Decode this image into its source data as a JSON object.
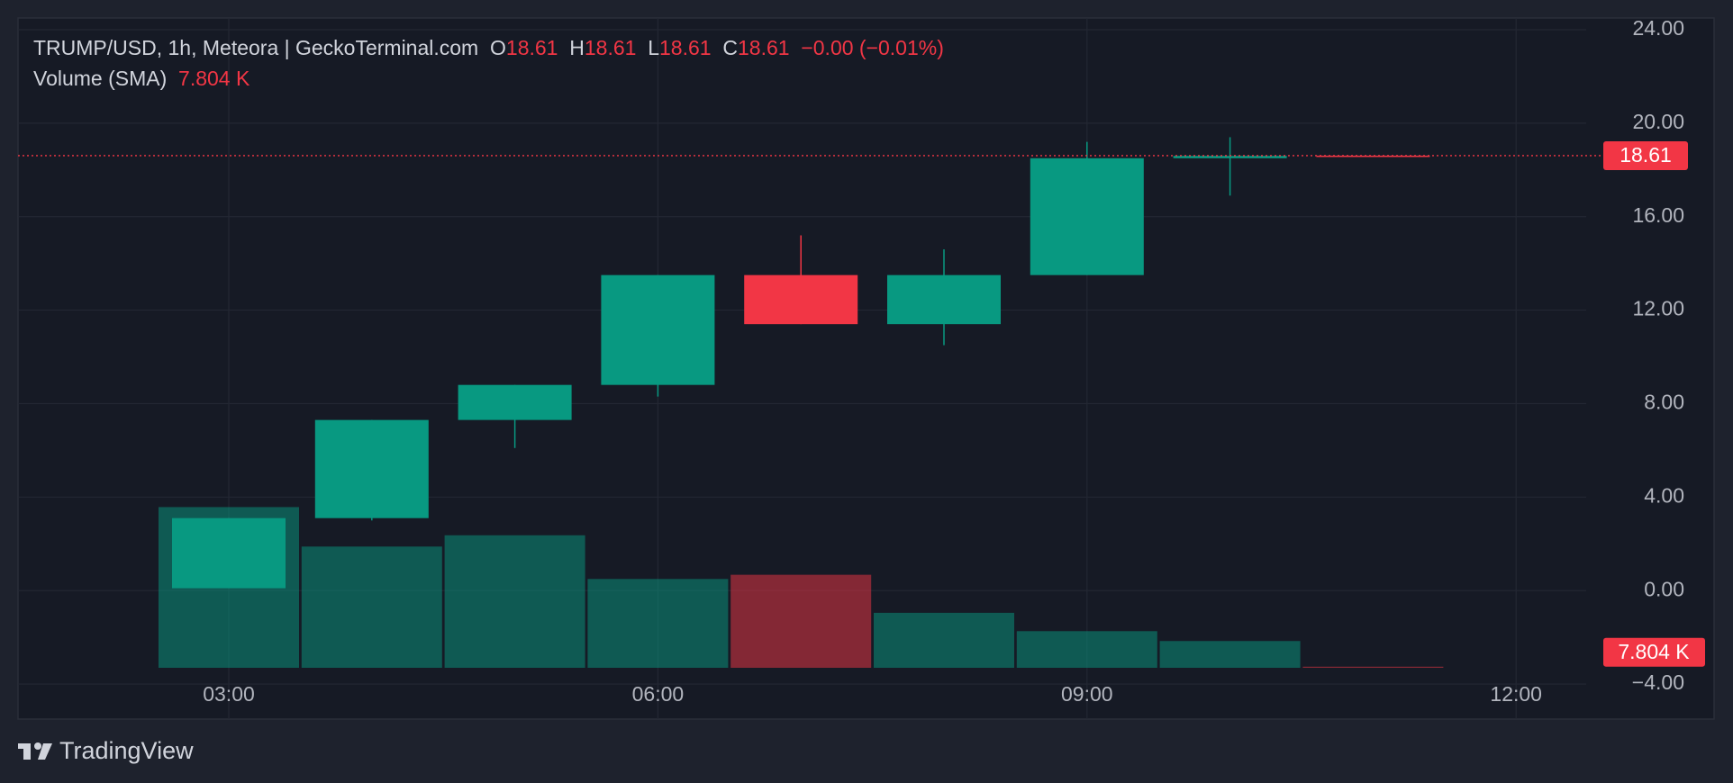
{
  "chart_data": {
    "type": "candlestick",
    "title": "TRUMP/USD, 1h, Meteora | GeckoTerminal.com",
    "ohlc_labels": [
      "O",
      "H",
      "L",
      "C"
    ],
    "change_label": "−0.00 (−0.01%)",
    "categories": [
      "03:00",
      null,
      null,
      "06:00",
      null,
      null,
      "09:00",
      null,
      null,
      "12:00"
    ],
    "open": [
      0.1,
      3.1,
      7.3,
      8.8,
      13.5,
      11.4,
      13.5,
      18.5,
      18.61,
      null
    ],
    "high": [
      3.1,
      7.3,
      8.8,
      13.5,
      15.2,
      14.6,
      19.2,
      19.4,
      18.61,
      null
    ],
    "low": [
      0.1,
      3.0,
      6.1,
      8.3,
      11.4,
      10.5,
      13.5,
      16.9,
      18.61,
      null
    ],
    "close": [
      3.1,
      7.3,
      8.8,
      13.5,
      11.4,
      13.5,
      18.5,
      18.6,
      18.61,
      null
    ],
    "up_color": "#089981",
    "down_color": "#f23645",
    "ylim": [
      -5.5,
      24.5
    ],
    "yticks": [
      {
        "value": 24,
        "label": "24.00"
      },
      {
        "value": 20,
        "label": "20.00"
      },
      {
        "value": 16,
        "label": "16.00"
      },
      {
        "value": 12,
        "label": "12.00"
      },
      {
        "value": 8,
        "label": "8.00"
      },
      {
        "value": 4,
        "label": "4.00"
      },
      {
        "value": 0,
        "label": "0.00"
      },
      {
        "value": -4,
        "label": "−4.00"
      }
    ],
    "grid": true,
    "volume": {
      "name": "Volume (SMA)",
      "values": [
        1140000,
        860000,
        940000,
        630000,
        660000,
        390000,
        260000,
        190000,
        7804,
        null
      ],
      "last_label": "7.804 K",
      "ylim": [
        0,
        1430000
      ]
    },
    "branding": "TradingView"
  }
}
